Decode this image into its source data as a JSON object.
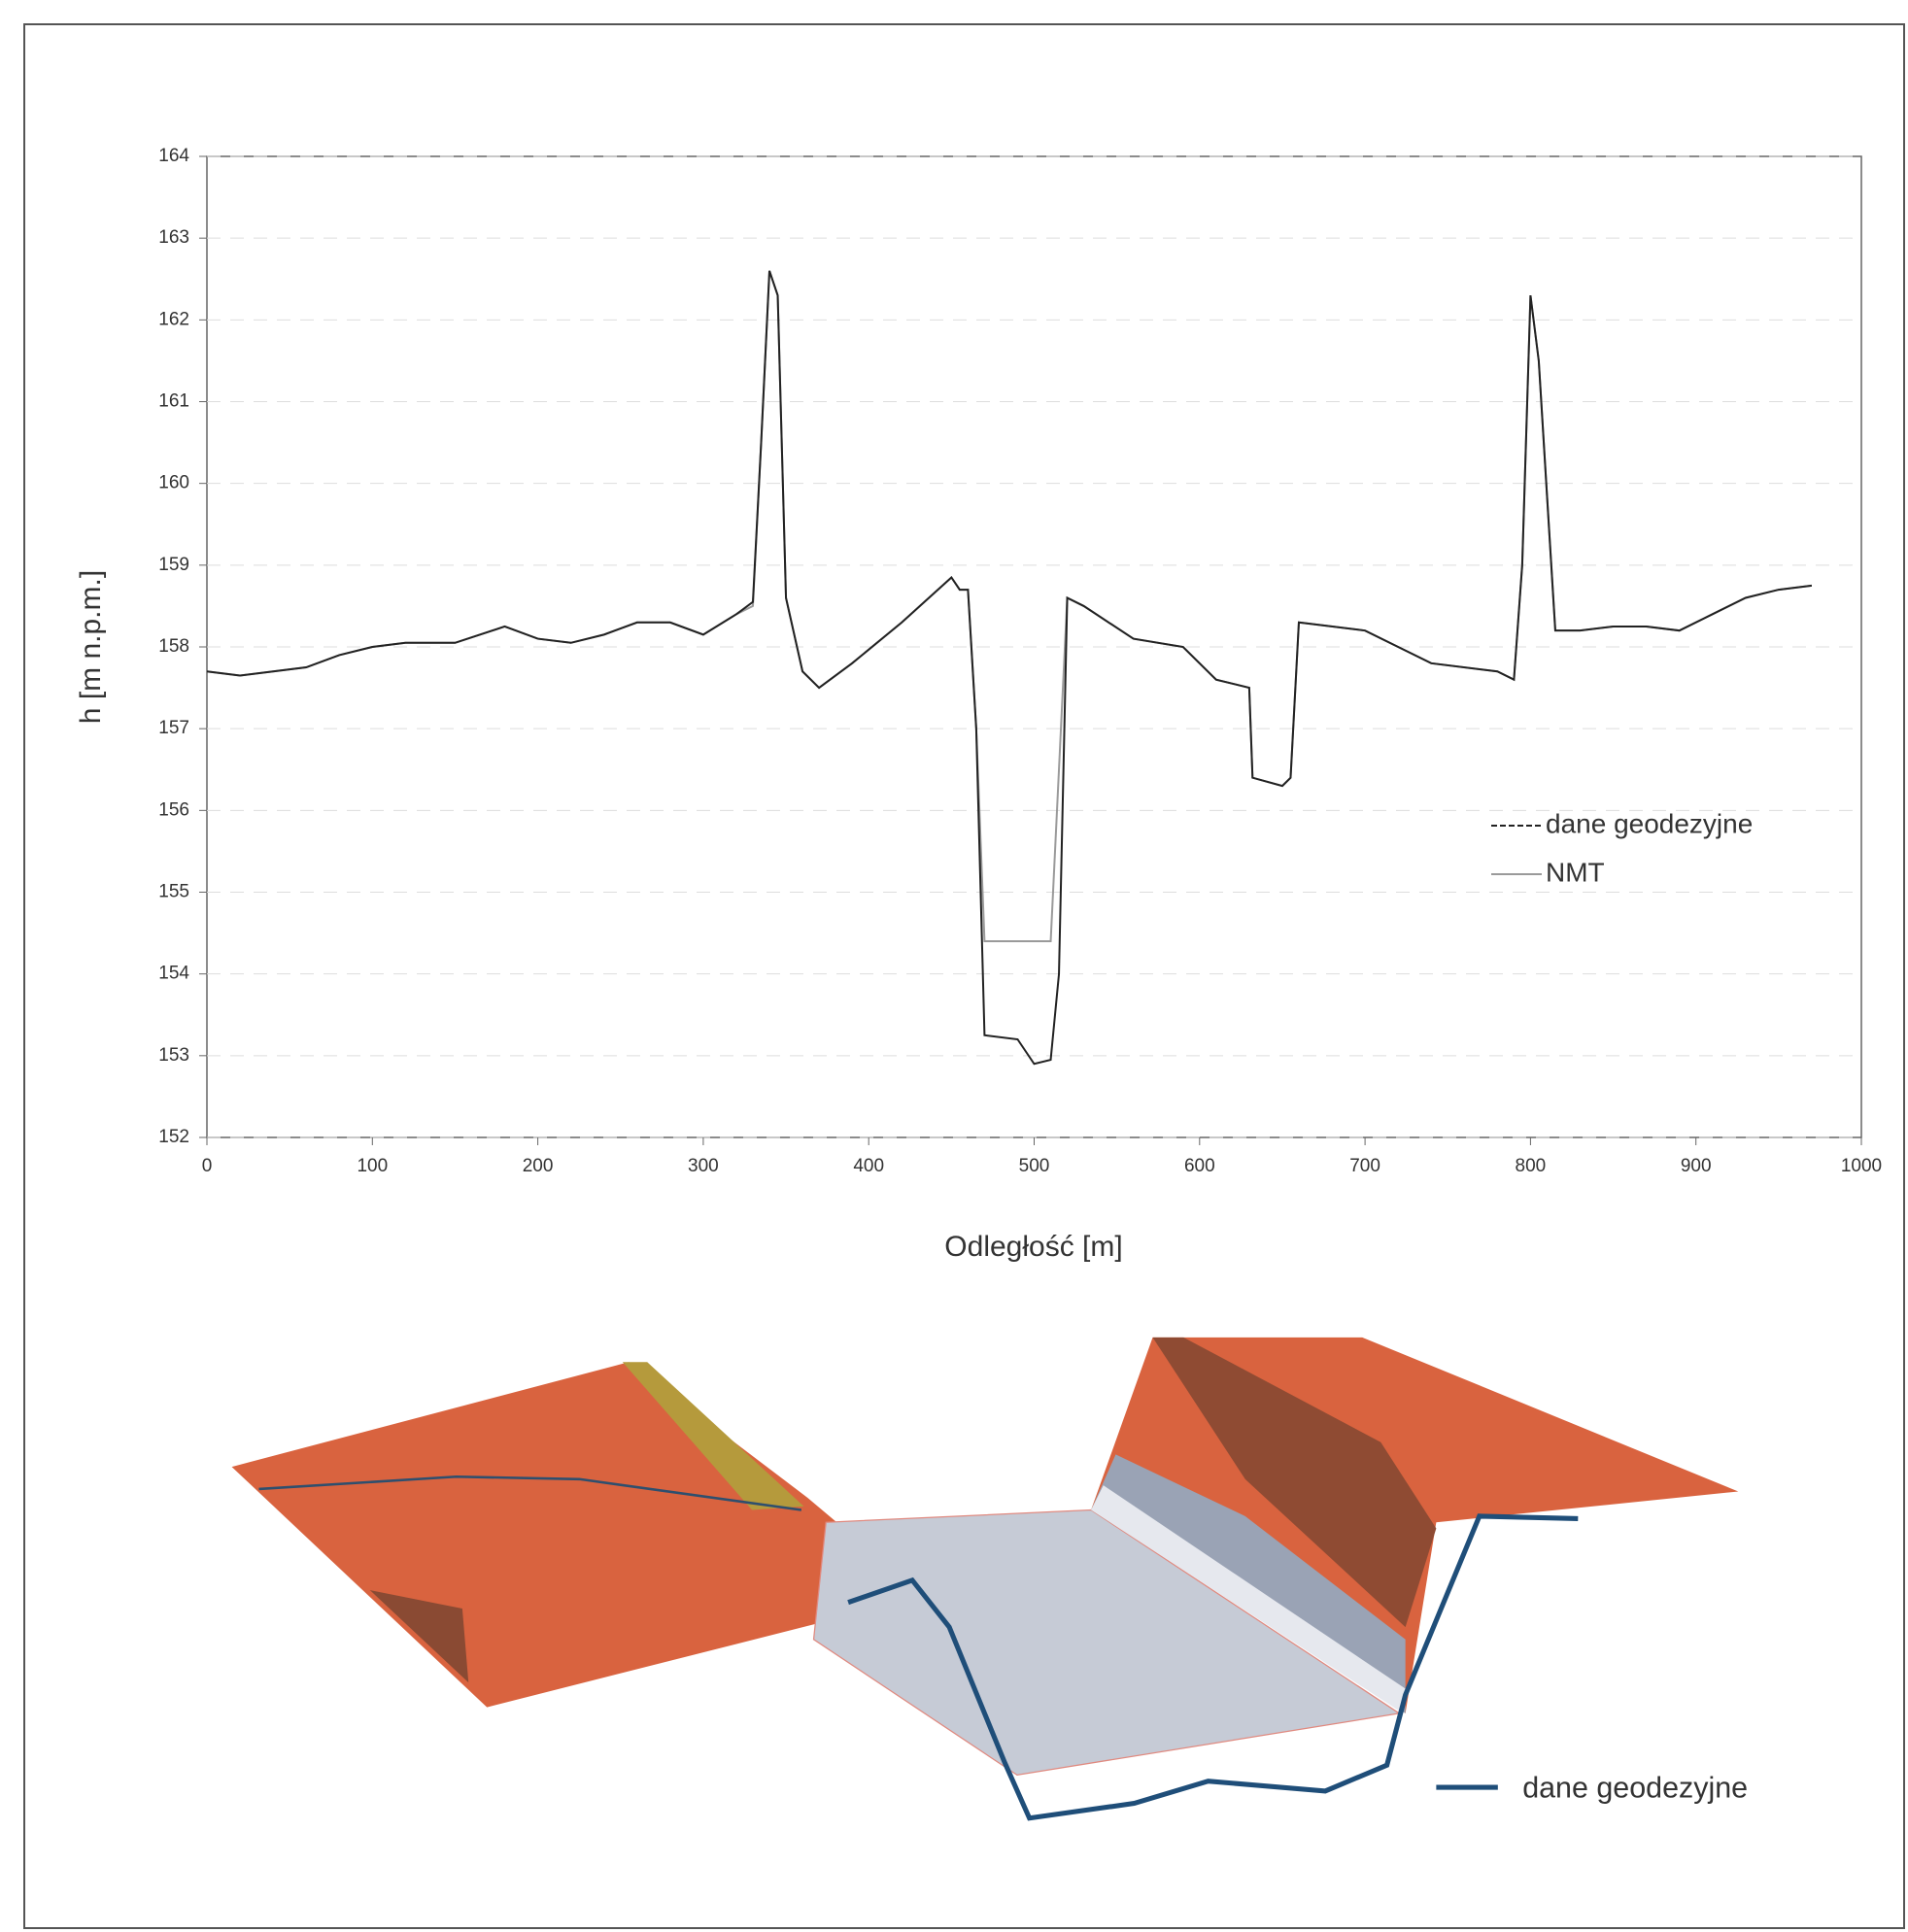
{
  "chart_data": {
    "type": "line",
    "x_label": "Odległość [m]",
    "y_label": "h [m n.p.m.]",
    "x": [
      0,
      20,
      40,
      60,
      80,
      100,
      120,
      150,
      180,
      200,
      220,
      240,
      260,
      280,
      300,
      320,
      330,
      335,
      340,
      345,
      350,
      360,
      370,
      390,
      420,
      450,
      455,
      460,
      465,
      470,
      490,
      500,
      510,
      515,
      520,
      530,
      560,
      590,
      610,
      630,
      632,
      650,
      655,
      660,
      700,
      720,
      740,
      780,
      790,
      795,
      800,
      805,
      815,
      830,
      850,
      870,
      890,
      910,
      930,
      950,
      970
    ],
    "series": [
      {
        "name": "dane geodezyjne",
        "color": "#222222",
        "values": [
          157.7,
          157.65,
          157.7,
          157.75,
          157.9,
          158.0,
          158.05,
          158.05,
          158.25,
          158.1,
          158.05,
          158.15,
          158.3,
          158.3,
          158.15,
          158.4,
          158.55,
          160.5,
          162.6,
          162.3,
          158.6,
          157.7,
          157.5,
          157.8,
          158.3,
          158.85,
          158.7,
          158.7,
          157.0,
          153.25,
          153.2,
          152.9,
          152.95,
          154.0,
          158.6,
          158.5,
          158.1,
          158.0,
          157.6,
          157.5,
          156.4,
          156.3,
          156.4,
          158.3,
          158.2,
          158.0,
          157.8,
          157.7,
          157.6,
          159.0,
          162.3,
          161.5,
          158.2,
          158.2,
          158.25,
          158.25,
          158.2,
          158.4,
          158.6,
          158.7,
          158.75
        ]
      },
      {
        "name": "NMT",
        "color": "#9a9a9a",
        "values": [
          157.7,
          157.65,
          157.7,
          157.75,
          157.9,
          158.0,
          158.05,
          158.05,
          158.25,
          158.1,
          158.05,
          158.15,
          158.3,
          158.3,
          158.15,
          158.4,
          158.5,
          160.5,
          162.6,
          162.3,
          158.6,
          157.7,
          157.5,
          157.8,
          158.3,
          158.85,
          158.7,
          158.7,
          157.0,
          154.4,
          154.4,
          154.4,
          154.4,
          156.5,
          158.6,
          158.5,
          158.1,
          158.0,
          157.6,
          157.5,
          156.4,
          156.3,
          156.4,
          158.3,
          158.2,
          158.0,
          157.8,
          157.7,
          157.6,
          159.0,
          162.3,
          161.5,
          158.2,
          158.2,
          158.25,
          158.25,
          158.2,
          158.4,
          158.6,
          158.7,
          158.75
        ]
      }
    ],
    "xlim": [
      0,
      1000
    ],
    "xticks": [
      0,
      100,
      200,
      300,
      400,
      500,
      600,
      700,
      800,
      900,
      1000
    ],
    "ylim": [
      152,
      164
    ],
    "yticks": [
      152,
      153,
      154,
      155,
      156,
      157,
      158,
      159,
      160,
      161,
      162,
      163,
      164
    ],
    "grid": true
  },
  "figure_3d": {
    "legend": "dane geodezyjne"
  }
}
